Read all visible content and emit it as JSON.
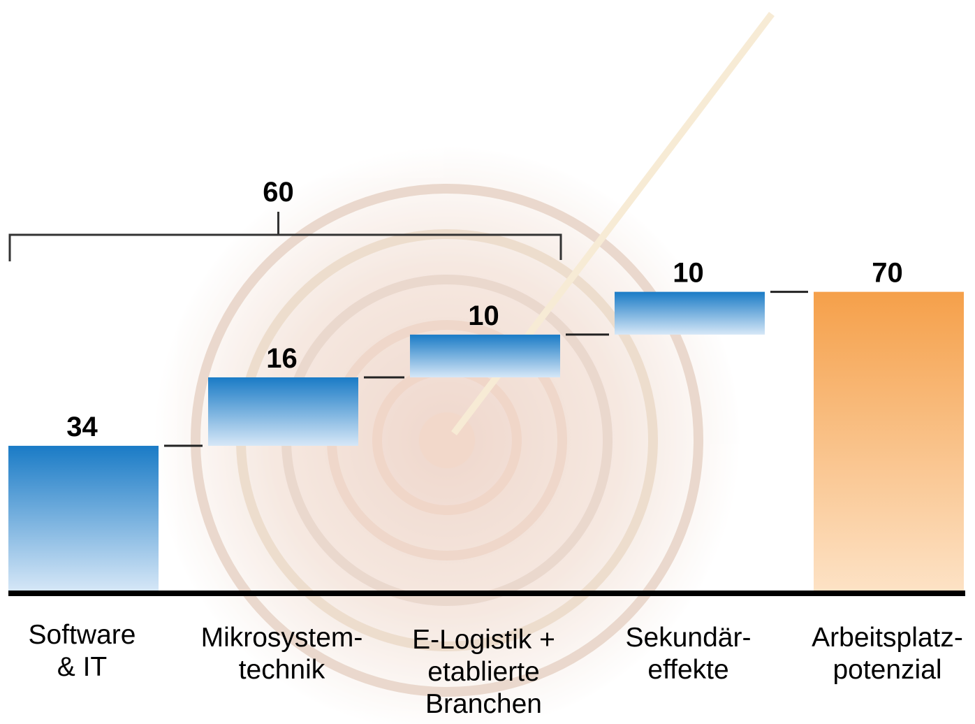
{
  "chart_data": {
    "type": "bar",
    "subtype": "waterfall",
    "categories": [
      [
        "Software",
        "& IT"
      ],
      [
        "Mikrosystem-",
        "technik"
      ],
      [
        "E-Logistik +",
        "etablierte",
        "Branchen"
      ],
      [
        "Sekundär-",
        "effekte"
      ],
      [
        "Arbeitsplatz-",
        "potenzial"
      ]
    ],
    "values": [
      34,
      16,
      10,
      10,
      70
    ],
    "kinds": [
      "increment",
      "increment",
      "increment",
      "increment",
      "total"
    ],
    "value_labels": [
      "34",
      "16",
      "10",
      "10",
      "70"
    ],
    "bracket": {
      "label": "60",
      "value": 60,
      "spans": [
        0,
        2
      ]
    },
    "ylim": [
      0,
      70
    ],
    "colors": {
      "increment": "#1a7bc6",
      "increment_light": "#d6e7f7",
      "total": "#f5a04a",
      "total_light": "#fde2c5",
      "axis": "#000000"
    },
    "grid": false,
    "legend": "none"
  }
}
